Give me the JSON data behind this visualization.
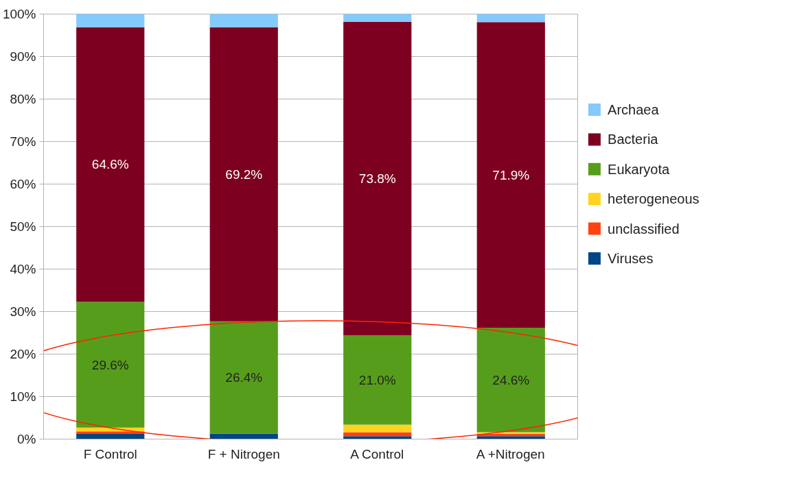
{
  "chart_data": {
    "type": "bar",
    "stacked": true,
    "categories": [
      "F Control",
      "F + Nitrogen",
      "A Control",
      "A +Nitrogen"
    ],
    "series": [
      {
        "name": "Viruses",
        "color": "#004586",
        "values": [
          1.2,
          1.3,
          0.7,
          0.7
        ]
      },
      {
        "name": "unclassified",
        "color": "#ff420e",
        "values": [
          0.6,
          0,
          0.9,
          0.5
        ]
      },
      {
        "name": "heterogeneous",
        "color": "#ffd320",
        "values": [
          0.9,
          0,
          1.8,
          0.4
        ]
      },
      {
        "name": "Eukaryota",
        "color": "#579d1c",
        "values": [
          29.6,
          26.4,
          21.0,
          24.6
        ],
        "value_labels": [
          "29.6%",
          "26.4%",
          "21.0%",
          "24.6%"
        ]
      },
      {
        "name": "Bacteria",
        "color": "#7e0021",
        "values": [
          64.6,
          69.2,
          73.8,
          71.9
        ],
        "value_labels": [
          "64.6%",
          "69.2%",
          "73.8%",
          "71.9%"
        ]
      },
      {
        "name": "Archaea",
        "color": "#83caff",
        "values": [
          3.1,
          3.1,
          1.8,
          1.9
        ]
      }
    ],
    "ylim": [
      0,
      100
    ],
    "yticks": [
      {
        "value": 0,
        "label": "0%"
      },
      {
        "value": 10,
        "label": "10%"
      },
      {
        "value": 20,
        "label": "20%"
      },
      {
        "value": 30,
        "label": "30%"
      },
      {
        "value": 40,
        "label": "40%"
      },
      {
        "value": 50,
        "label": "50%"
      },
      {
        "value": 60,
        "label": "60%"
      },
      {
        "value": 70,
        "label": "70%"
      },
      {
        "value": 80,
        "label": "80%"
      },
      {
        "value": 90,
        "label": "90%"
      },
      {
        "value": 100,
        "label": "100%"
      }
    ],
    "grid": "y",
    "legend": "right"
  }
}
